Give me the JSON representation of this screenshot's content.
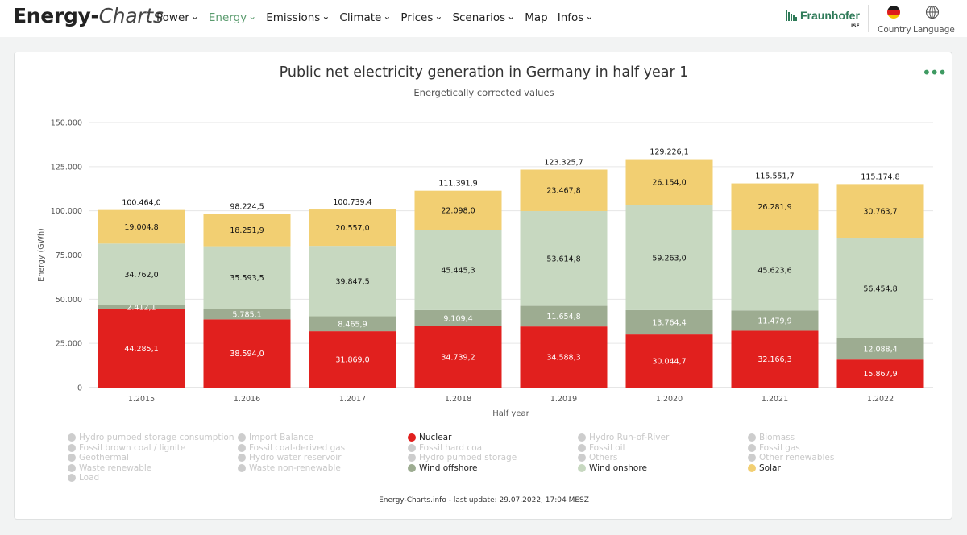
{
  "header": {
    "logo_bold": "Energy-",
    "logo_italic": "Charts",
    "nav": [
      {
        "label": "Power",
        "active": false
      },
      {
        "label": "Energy",
        "active": true
      },
      {
        "label": "Emissions",
        "active": false
      },
      {
        "label": "Climate",
        "active": false
      },
      {
        "label": "Prices",
        "active": false
      },
      {
        "label": "Scenarios",
        "active": false
      },
      {
        "label": "Map",
        "active": false
      },
      {
        "label": "Infos",
        "active": false
      }
    ],
    "brand": "Fraunhofer",
    "brand_sub": "ISE",
    "country_label": "Country",
    "language_label": "Language"
  },
  "footer": {
    "credit": "Energy-Charts.info - last update: 29.07.2022, 17:04 MESZ"
  },
  "chart_data": {
    "type": "bar",
    "stacked": true,
    "title": "Public net electricity generation in Germany in half year 1",
    "subtitle": "Energetically corrected values",
    "xlabel": "Half year",
    "ylabel": "Energy (GWh)",
    "ylim": [
      0,
      150000
    ],
    "yticks": [
      "0",
      "25.000",
      "50.000",
      "75.000",
      "100.000",
      "125.000",
      "150.000"
    ],
    "grid": true,
    "categories": [
      "1.2015",
      "1.2016",
      "1.2017",
      "1.2018",
      "1.2019",
      "1.2020",
      "1.2021",
      "1.2022"
    ],
    "series": [
      {
        "name": "Nuclear",
        "color": "#e1201e",
        "labelColor": "#ffffff",
        "values": [
          44285.1,
          38594.0,
          31869.0,
          34739.2,
          34588.3,
          30044.7,
          32166.3,
          15867.9
        ],
        "labels": [
          "44.285,1",
          "38.594,0",
          "31.869,0",
          "34.739,2",
          "34.588,3",
          "30.044,7",
          "32.166,3",
          "15.867,9"
        ]
      },
      {
        "name": "Wind offshore",
        "color": "#9dac91",
        "labelColor": "#ffffff",
        "values": [
          2412.1,
          5785.1,
          8465.9,
          9109.4,
          11654.8,
          13764.4,
          11479.9,
          12088.4
        ],
        "labels": [
          "2.412,1",
          "5.785,1",
          "8.465,9",
          "9.109,4",
          "11.654,8",
          "13.764,4",
          "11.479,9",
          "12.088,4"
        ]
      },
      {
        "name": "Wind onshore",
        "color": "#c7d8c0",
        "labelColor": "#111111",
        "values": [
          34762.0,
          35593.5,
          39847.5,
          45445.3,
          53614.8,
          59263.0,
          45623.6,
          56454.8
        ],
        "labels": [
          "34.762,0",
          "35.593,5",
          "39.847,5",
          "45.445,3",
          "53.614,8",
          "59.263,0",
          "45.623,6",
          "56.454,8"
        ]
      },
      {
        "name": "Solar",
        "color": "#f2cf72",
        "labelColor": "#111111",
        "values": [
          19004.8,
          18251.9,
          20557.0,
          22098.0,
          23467.8,
          26154.0,
          26281.9,
          30763.7
        ],
        "labels": [
          "19.004,8",
          "18.251,9",
          "20.557,0",
          "22.098,0",
          "23.467,8",
          "26.154,0",
          "26.281,9",
          "30.763,7"
        ]
      }
    ],
    "totals": [
      100464.0,
      98224.5,
      100739.4,
      111391.9,
      123325.7,
      129226.1,
      115551.7,
      115174.8
    ],
    "total_labels": [
      "100.464,0",
      "98.224,5",
      "100.739,4",
      "111.391,9",
      "123.325,7",
      "129.226,1",
      "115.551,7",
      "115.174,8"
    ],
    "legend": [
      {
        "label": "Hydro pumped storage consumption",
        "on": false,
        "color": ""
      },
      {
        "label": "Import Balance",
        "on": false,
        "color": ""
      },
      {
        "label": "Nuclear",
        "on": true,
        "color": "#e1201e"
      },
      {
        "label": "Hydro Run-of-River",
        "on": false,
        "color": ""
      },
      {
        "label": "Biomass",
        "on": false,
        "color": ""
      },
      {
        "label": "Fossil brown coal / lignite",
        "on": false,
        "color": ""
      },
      {
        "label": "Fossil coal-derived gas",
        "on": false,
        "color": ""
      },
      {
        "label": "Fossil hard coal",
        "on": false,
        "color": ""
      },
      {
        "label": "Fossil oil",
        "on": false,
        "color": ""
      },
      {
        "label": "Fossil gas",
        "on": false,
        "color": ""
      },
      {
        "label": "Geothermal",
        "on": false,
        "color": ""
      },
      {
        "label": "Hydro water reservoir",
        "on": false,
        "color": ""
      },
      {
        "label": "Hydro pumped storage",
        "on": false,
        "color": ""
      },
      {
        "label": "Others",
        "on": false,
        "color": ""
      },
      {
        "label": "Other renewables",
        "on": false,
        "color": ""
      },
      {
        "label": "Waste renewable",
        "on": false,
        "color": ""
      },
      {
        "label": "Waste non-renewable",
        "on": false,
        "color": ""
      },
      {
        "label": "Wind offshore",
        "on": true,
        "color": "#9dac91"
      },
      {
        "label": "Wind onshore",
        "on": true,
        "color": "#c7d8c0"
      },
      {
        "label": "Solar",
        "on": true,
        "color": "#f2cf72"
      },
      {
        "label": "Load",
        "on": false,
        "color": ""
      }
    ]
  }
}
